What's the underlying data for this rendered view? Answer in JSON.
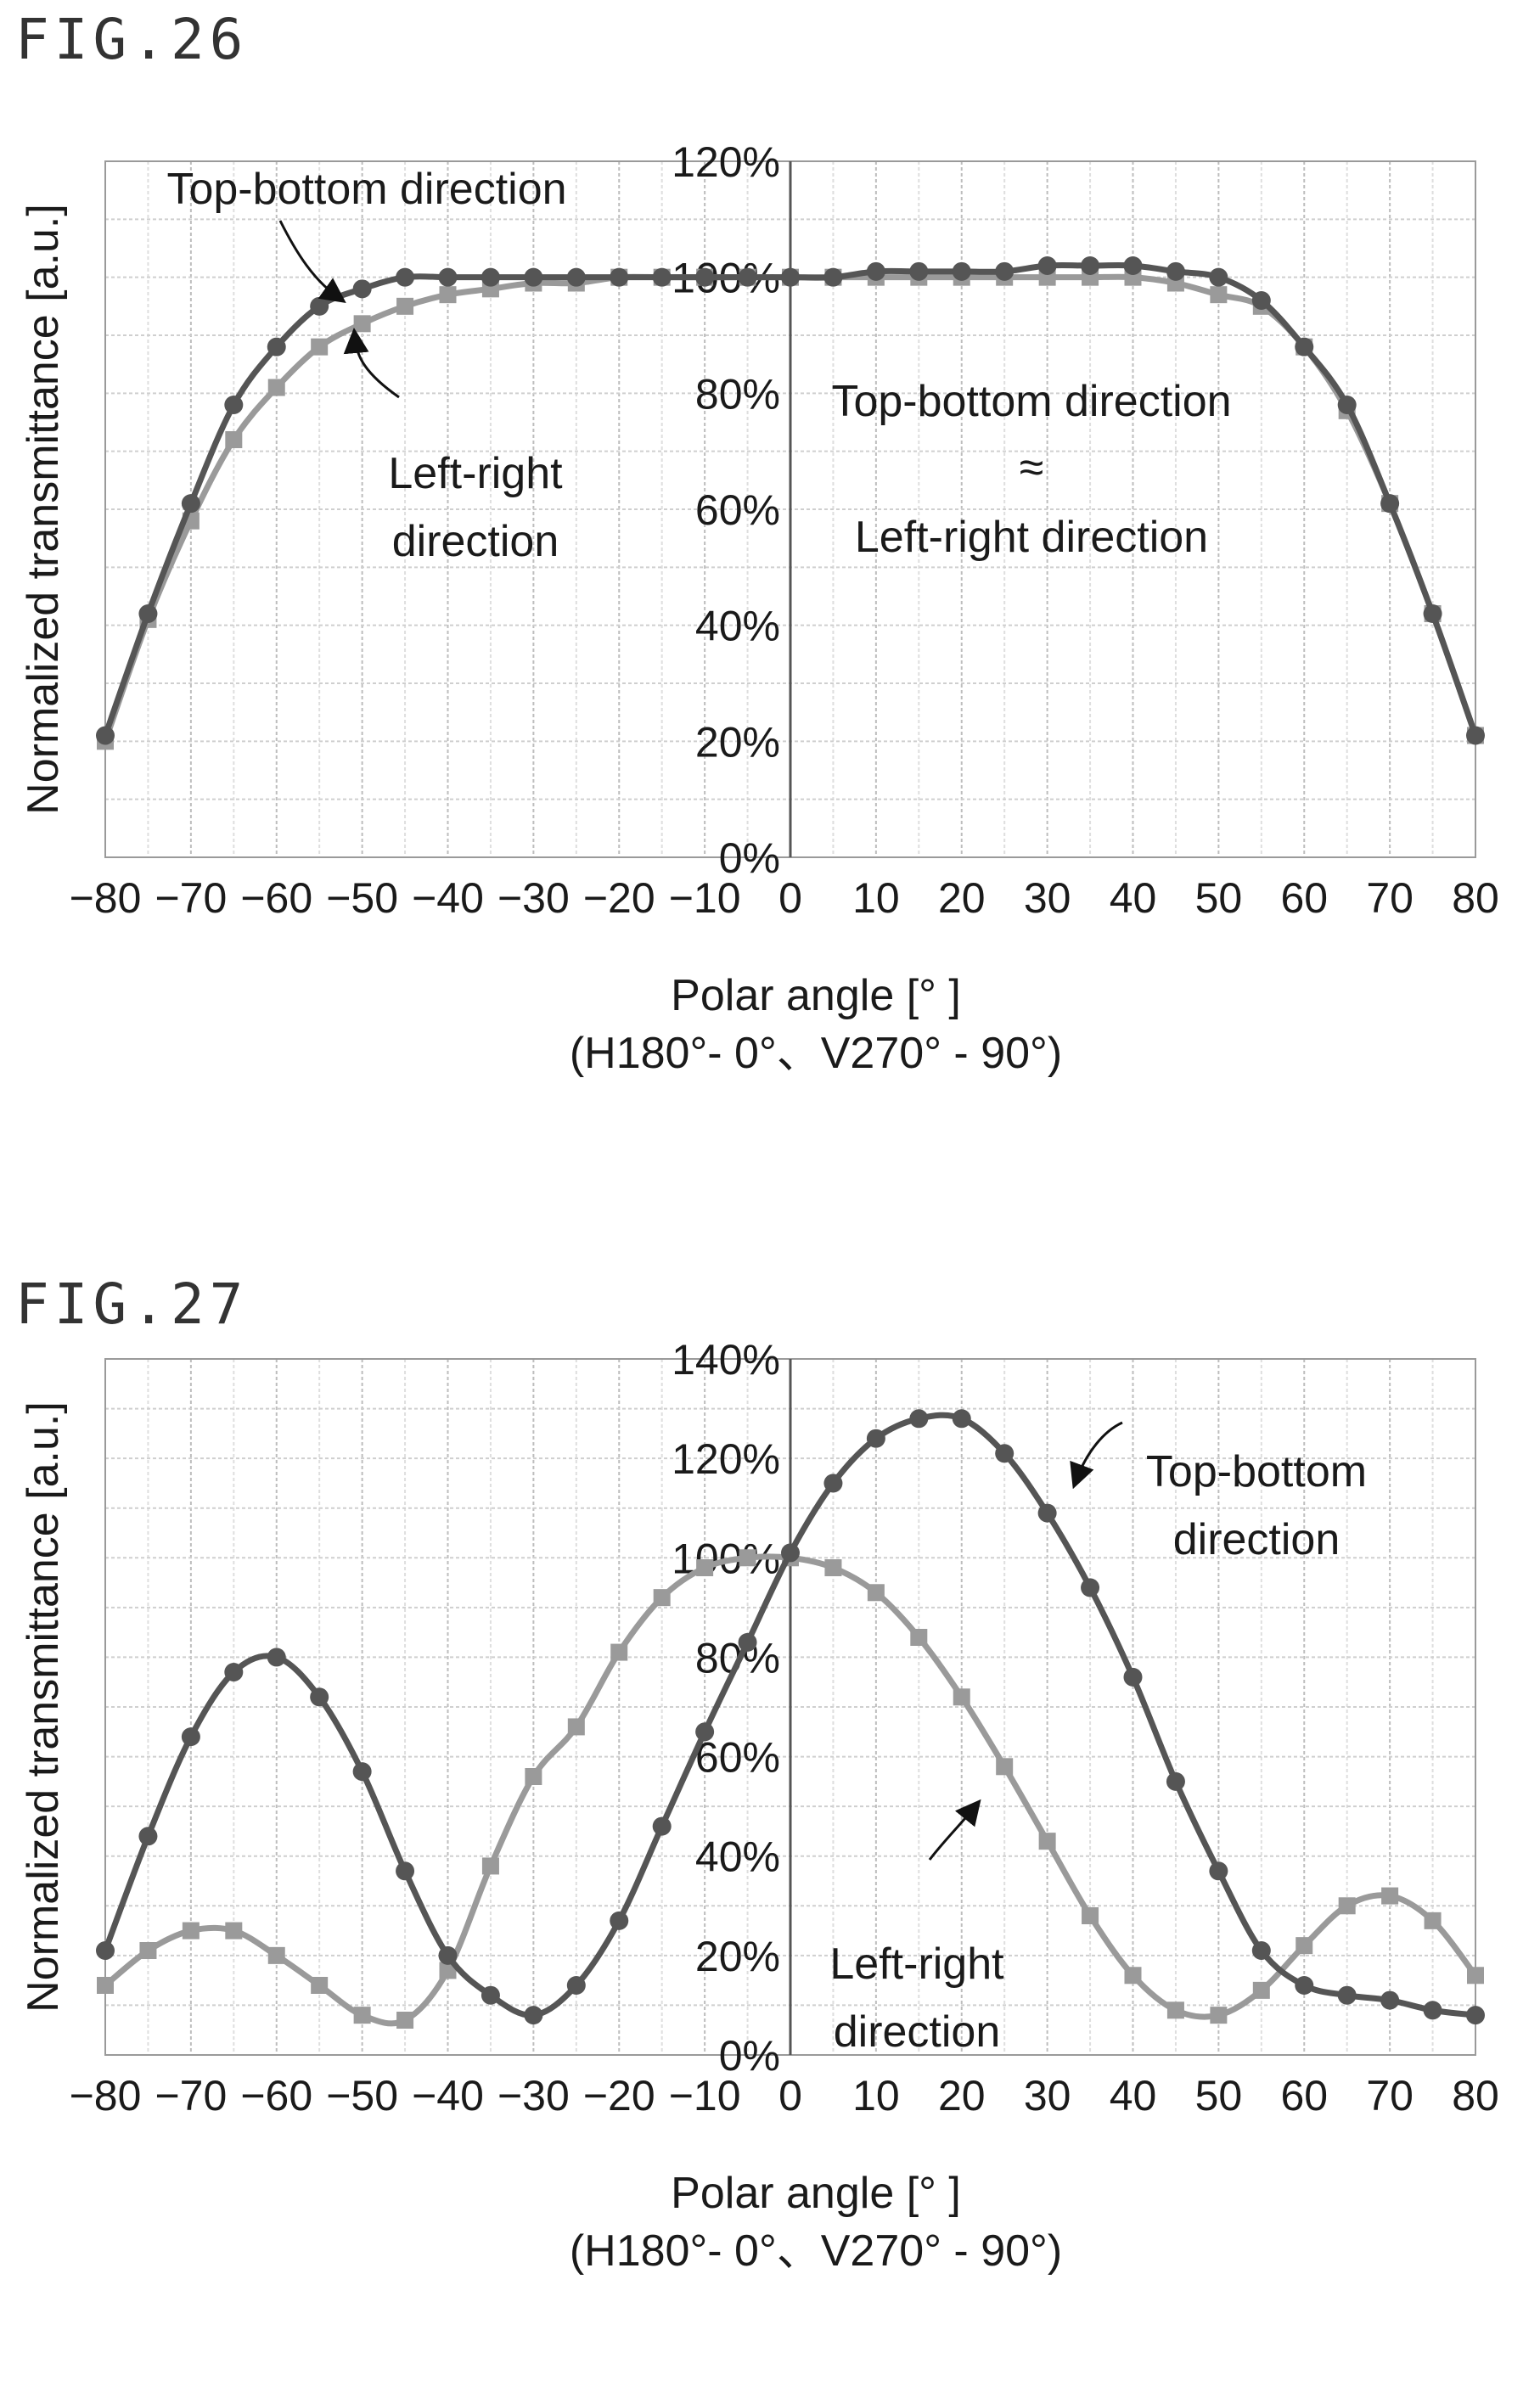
{
  "figures": [
    {
      "label": "FIG.26"
    },
    {
      "label": "FIG.27"
    }
  ],
  "chart_data": [
    {
      "type": "line",
      "xlabel": "Polar angle [° ]",
      "xlabel_sub": "(H180°- 0°、V270° - 90°)",
      "ylabel": "Normalized transmittance [a.u.]",
      "xlim": [
        -80,
        80
      ],
      "ylim": [
        0,
        120
      ],
      "x_ticks": [
        "-80",
        "-70",
        "-60",
        "-50",
        "-40",
        "-30",
        "-20",
        "-10",
        "0",
        "10",
        "20",
        "30",
        "40",
        "50",
        "60",
        "70",
        "80"
      ],
      "y_ticks": [
        "0%",
        "20%",
        "40%",
        "60%",
        "80%",
        "100%",
        "120%"
      ],
      "grid": true,
      "x": [
        -80,
        -75,
        -70,
        -65,
        -60,
        -55,
        -50,
        -45,
        -40,
        -35,
        -30,
        -25,
        -20,
        -15,
        -10,
        -5,
        0,
        5,
        10,
        15,
        20,
        25,
        30,
        35,
        40,
        45,
        50,
        55,
        60,
        65,
        70,
        75,
        80
      ],
      "series": [
        {
          "name": "Top-bottom direction",
          "color": "#555555",
          "marker": "circle",
          "values": [
            21,
            42,
            61,
            78,
            88,
            95,
            98,
            100,
            100,
            100,
            100,
            100,
            100,
            100,
            100,
            100,
            100,
            100,
            101,
            101,
            101,
            101,
            102,
            102,
            102,
            101,
            100,
            96,
            88,
            78,
            61,
            42,
            21
          ]
        },
        {
          "name": "Left-right direction",
          "color": "#9a9a9a",
          "marker": "square",
          "values": [
            20,
            41,
            58,
            72,
            81,
            88,
            92,
            95,
            97,
            98,
            99,
            99,
            100,
            100,
            100,
            100,
            100,
            100,
            100,
            100,
            100,
            100,
            100,
            100,
            100,
            99,
            97,
            95,
            88,
            77,
            61,
            42,
            21
          ]
        }
      ],
      "annotations": [
        {
          "text": "Top-bottom direction"
        },
        {
          "text": "Left-right"
        },
        {
          "text": "direction"
        },
        {
          "text": "Top-bottom direction"
        },
        {
          "text": "≈"
        },
        {
          "text": "Left-right direction"
        }
      ]
    },
    {
      "type": "line",
      "xlabel": "Polar angle [° ]",
      "xlabel_sub": "(H180°- 0°、V270° - 90°)",
      "ylabel": "Normalized transmittance [a.u.]",
      "xlim": [
        -80,
        80
      ],
      "ylim": [
        0,
        140
      ],
      "x_ticks": [
        "-80",
        "-70",
        "-60",
        "-50",
        "-40",
        "-30",
        "-20",
        "-10",
        "0",
        "10",
        "20",
        "30",
        "40",
        "50",
        "60",
        "70",
        "80"
      ],
      "y_ticks": [
        "0%",
        "20%",
        "40%",
        "60%",
        "80%",
        "100%",
        "120%",
        "140%"
      ],
      "grid": true,
      "x": [
        -80,
        -75,
        -70,
        -65,
        -60,
        -55,
        -50,
        -45,
        -40,
        -35,
        -30,
        -25,
        -20,
        -15,
        -10,
        -5,
        0,
        5,
        10,
        15,
        20,
        25,
        30,
        35,
        40,
        45,
        50,
        55,
        60,
        65,
        70,
        75,
        80
      ],
      "series": [
        {
          "name": "Top-bottom direction",
          "color": "#555555",
          "marker": "circle",
          "values": [
            21,
            44,
            64,
            77,
            80,
            72,
            57,
            37,
            20,
            12,
            8,
            14,
            27,
            46,
            65,
            83,
            101,
            115,
            124,
            128,
            128,
            121,
            109,
            94,
            76,
            55,
            37,
            21,
            14,
            12,
            11,
            9,
            8
          ]
        },
        {
          "name": "Left-right direction",
          "color": "#9a9a9a",
          "marker": "square",
          "values": [
            14,
            21,
            25,
            25,
            20,
            14,
            8,
            7,
            17,
            38,
            56,
            66,
            81,
            92,
            98,
            100,
            100,
            98,
            93,
            84,
            72,
            58,
            43,
            28,
            16,
            9,
            8,
            13,
            22,
            30,
            32,
            27,
            16
          ]
        }
      ],
      "annotations": [
        {
          "text": "Top-bottom"
        },
        {
          "text": "direction"
        },
        {
          "text": "Left-right"
        },
        {
          "text": "direction"
        }
      ]
    }
  ]
}
